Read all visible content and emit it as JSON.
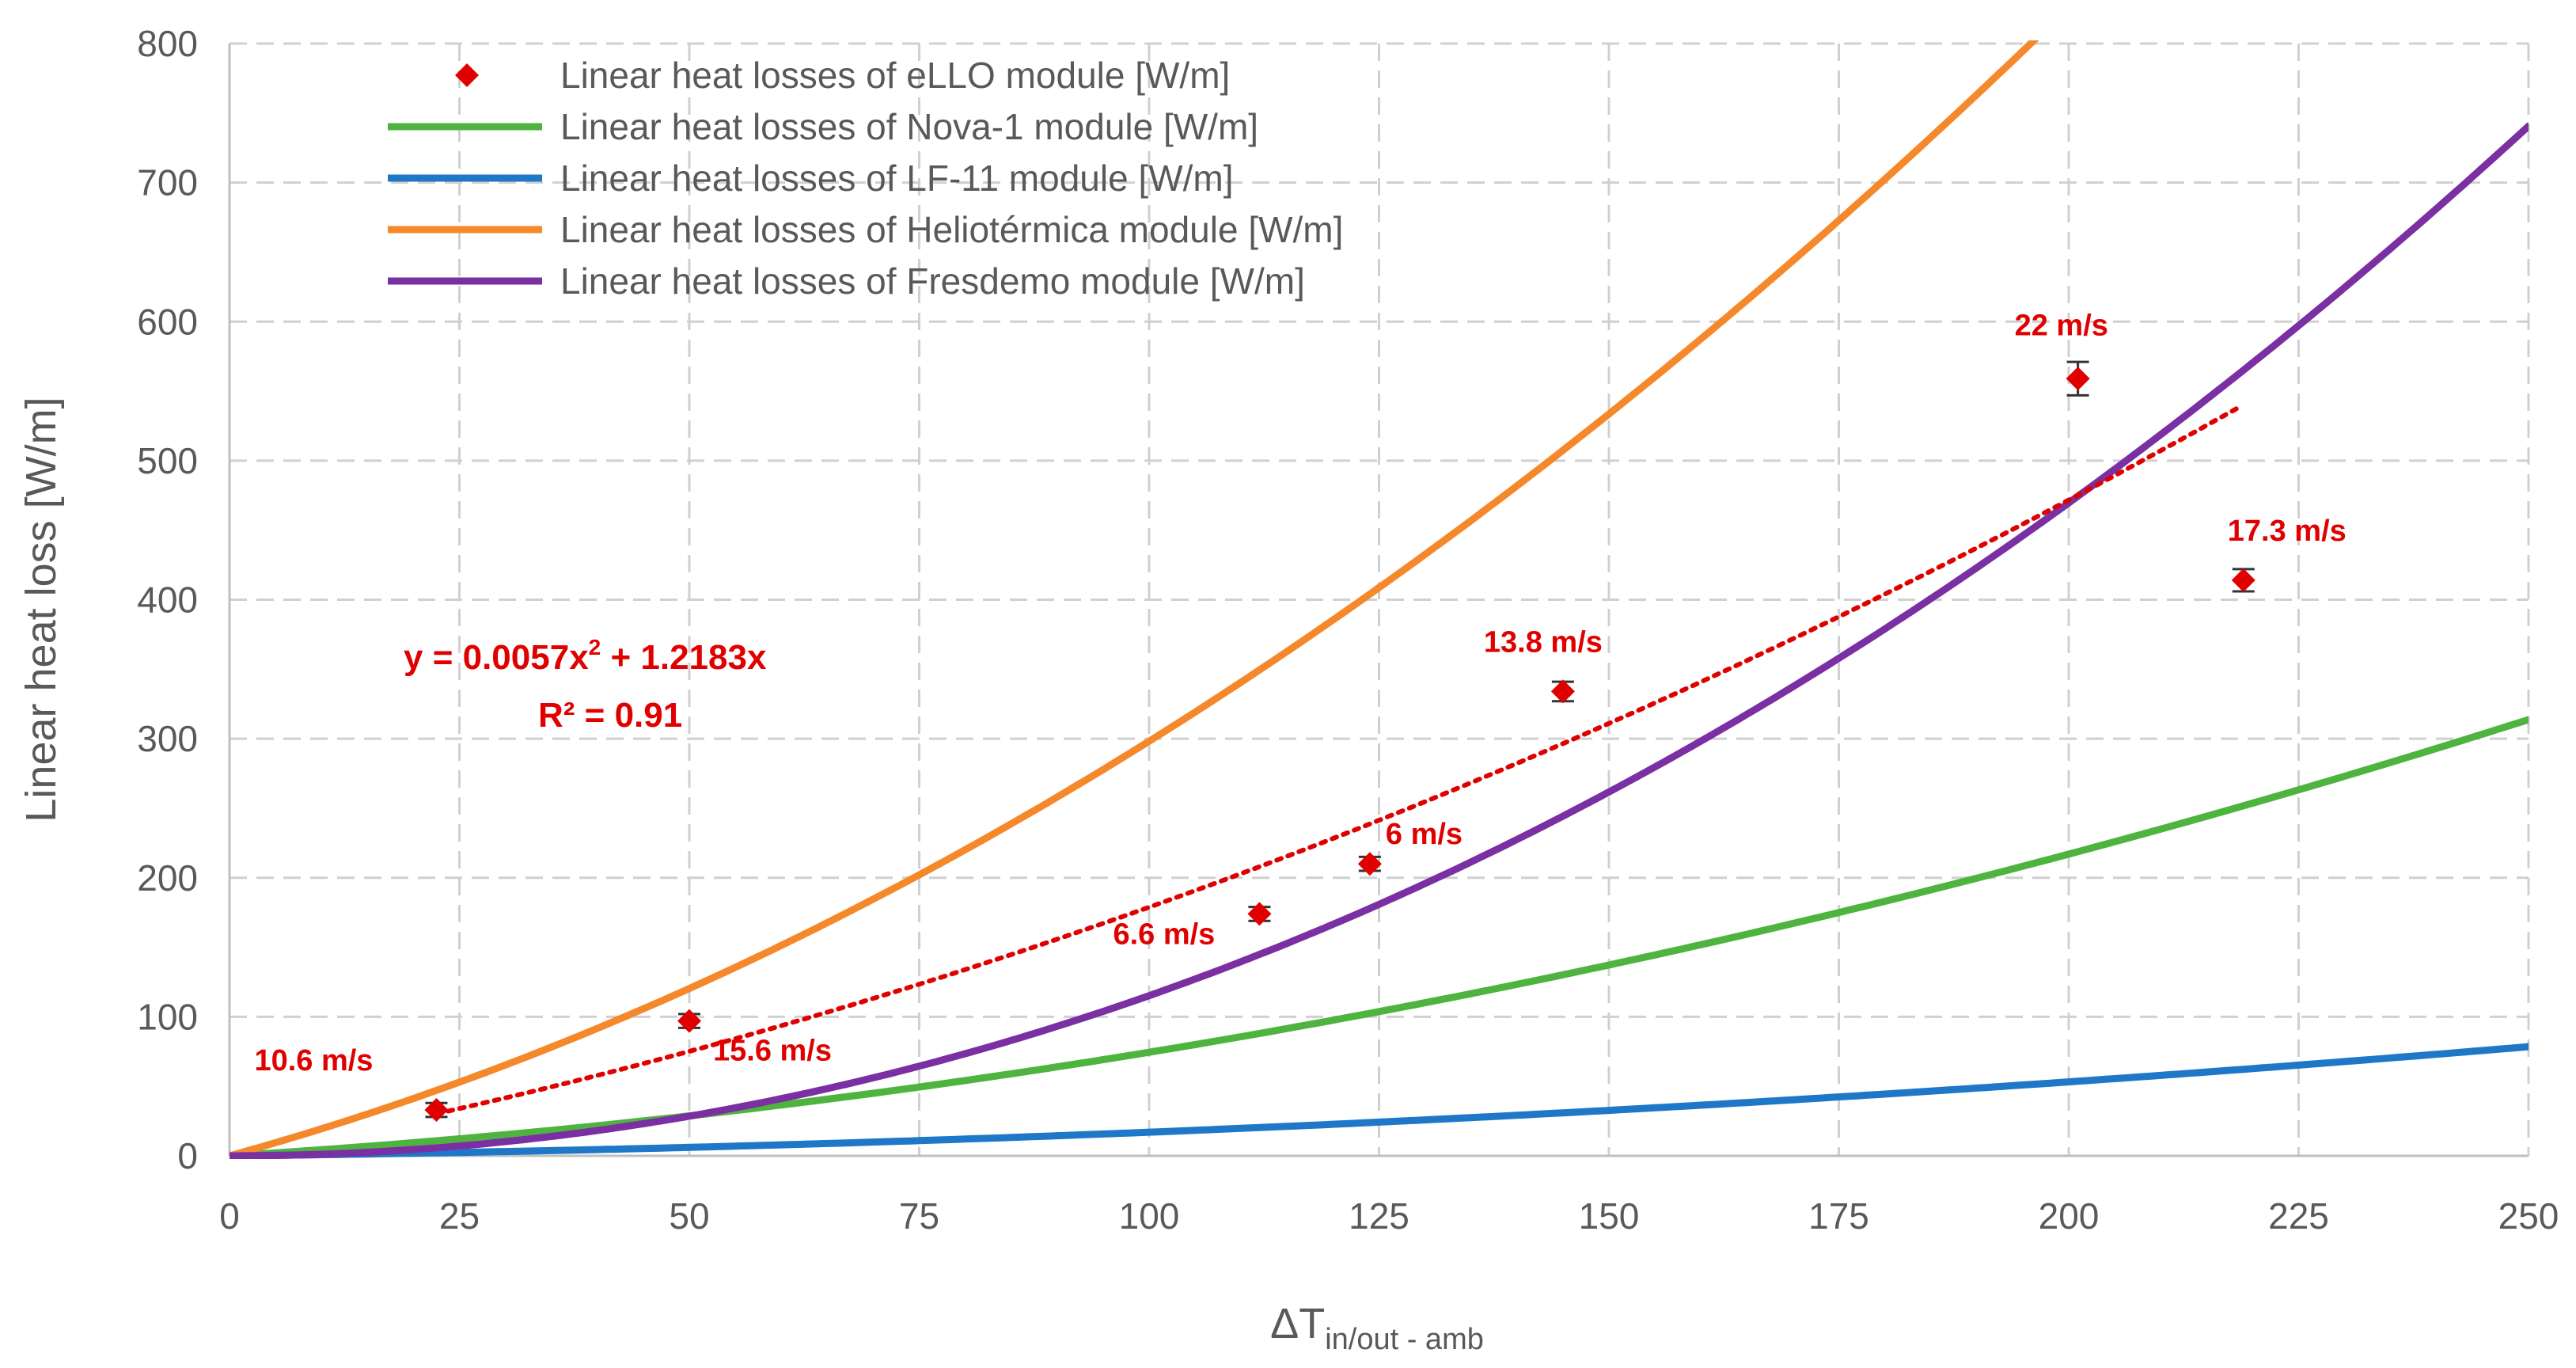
{
  "chart_data": {
    "type": "line",
    "xlabel_main": "ΔT",
    "xlabel_sub": "in/out - amb",
    "ylabel": "Linear heat loss [W/m]",
    "xlim": [
      0,
      250
    ],
    "ylim": [
      0,
      800
    ],
    "x_ticks": [
      0,
      25,
      50,
      75,
      100,
      125,
      150,
      175,
      200,
      225,
      250
    ],
    "y_ticks": [
      0,
      100,
      200,
      300,
      400,
      500,
      600,
      700,
      800
    ],
    "grid": "dashed",
    "legend_position": "top-left",
    "series": [
      {
        "name": "Linear heat losses of eLLO module [W/m]",
        "kind": "points",
        "color": "#e00000",
        "points": [
          {
            "x": 22.5,
            "y": 33,
            "label": "10.6 m/s",
            "err": 5
          },
          {
            "x": 50,
            "y": 97,
            "label": "15.6 m/s",
            "err": 5
          },
          {
            "x": 112,
            "y": 174,
            "label": "6.6 m/s",
            "err": 5
          },
          {
            "x": 124,
            "y": 210,
            "label": "6 m/s",
            "err": 5
          },
          {
            "x": 145,
            "y": 334,
            "label": "13.8 m/s",
            "err": 7
          },
          {
            "x": 201,
            "y": 559,
            "label": "22 m/s",
            "err": 12
          },
          {
            "x": 219,
            "y": 414,
            "label": "17.3 m/s",
            "err": 8
          }
        ]
      },
      {
        "name": "Linear heat losses of Nova-1 module [W/m]",
        "kind": "curve",
        "color": "#4fb340",
        "a": 0.0034,
        "b": 0.405,
        "c": 0
      },
      {
        "name": "Linear heat losses of LF-11 module [W/m]",
        "kind": "curve",
        "color": "#1f77c8",
        "a": 0.00096,
        "b": 0.074,
        "c": 0
      },
      {
        "name": "Linear heat losses of Heliotérmica module [W/m]",
        "kind": "curve",
        "color": "#f5882b",
        "a": 0.0115,
        "b": 1.832,
        "c": 0
      },
      {
        "name": "Linear heat losses of Fresdemo module [W/m]",
        "kind": "curve",
        "color": "#7a2fa2",
        "a": 0.0113,
        "b": 0.0,
        "c": 2.2e-06
      }
    ],
    "trendline": {
      "a": 0.0057,
      "b": 1.2183,
      "x_from": 22.5,
      "x_to": 219,
      "color": "#e00000",
      "style": "dotted"
    },
    "equation_text": "y = 0.0057x",
    "equation_exp": "2",
    "equation_rest": " + 1.2183x",
    "r2_text": "R² = 0.91"
  }
}
